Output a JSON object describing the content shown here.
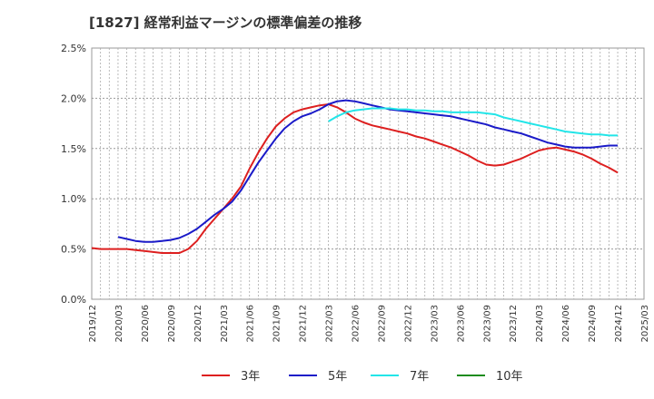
{
  "chart_data": {
    "type": "line",
    "title": "[1827]  経常利益マージンの標準偏差の推移",
    "xlabel": "",
    "ylabel": "",
    "x_ticks": [
      "2019/12",
      "2020/03",
      "2020/06",
      "2020/09",
      "2020/12",
      "2021/03",
      "2021/06",
      "2021/09",
      "2021/12",
      "2022/03",
      "2022/06",
      "2022/09",
      "2022/12",
      "2023/03",
      "2023/06",
      "2023/09",
      "2023/12",
      "2024/03",
      "2024/06",
      "2024/09",
      "2024/12",
      "2025/03"
    ],
    "y_ticks": [
      "0.0%",
      "0.5%",
      "1.0%",
      "1.5%",
      "2.0%",
      "2.5%"
    ],
    "ylim": [
      0,
      2.5
    ],
    "grid": true,
    "legend_position": "bottom",
    "series": [
      {
        "name": "3年",
        "color": "#dd1f1f",
        "points": [
          [
            "2019/12",
            0.51
          ],
          [
            "2020/01",
            0.5
          ],
          [
            "2020/02",
            0.5
          ],
          [
            "2020/03",
            0.5
          ],
          [
            "2020/04",
            0.5
          ],
          [
            "2020/05",
            0.49
          ],
          [
            "2020/06",
            0.48
          ],
          [
            "2020/07",
            0.47
          ],
          [
            "2020/08",
            0.46
          ],
          [
            "2020/09",
            0.46
          ],
          [
            "2020/10",
            0.46
          ],
          [
            "2020/11",
            0.5
          ],
          [
            "2020/12",
            0.58
          ],
          [
            "2021/01",
            0.7
          ],
          [
            "2021/02",
            0.8
          ],
          [
            "2021/03",
            0.9
          ],
          [
            "2021/04",
            1.0
          ],
          [
            "2021/05",
            1.12
          ],
          [
            "2021/06",
            1.3
          ],
          [
            "2021/07",
            1.46
          ],
          [
            "2021/08",
            1.6
          ],
          [
            "2021/09",
            1.72
          ],
          [
            "2021/10",
            1.8
          ],
          [
            "2021/11",
            1.86
          ],
          [
            "2021/12",
            1.89
          ],
          [
            "2022/01",
            1.91
          ],
          [
            "2022/02",
            1.93
          ],
          [
            "2022/03",
            1.94
          ],
          [
            "2022/04",
            1.91
          ],
          [
            "2022/05",
            1.86
          ],
          [
            "2022/06",
            1.8
          ],
          [
            "2022/07",
            1.76
          ],
          [
            "2022/08",
            1.73
          ],
          [
            "2022/09",
            1.71
          ],
          [
            "2022/10",
            1.69
          ],
          [
            "2022/11",
            1.67
          ],
          [
            "2022/12",
            1.65
          ],
          [
            "2023/01",
            1.62
          ],
          [
            "2023/02",
            1.6
          ],
          [
            "2023/03",
            1.57
          ],
          [
            "2023/04",
            1.54
          ],
          [
            "2023/05",
            1.51
          ],
          [
            "2023/06",
            1.47
          ],
          [
            "2023/07",
            1.43
          ],
          [
            "2023/08",
            1.38
          ],
          [
            "2023/09",
            1.34
          ],
          [
            "2023/10",
            1.33
          ],
          [
            "2023/11",
            1.34
          ],
          [
            "2023/12",
            1.37
          ],
          [
            "2024/01",
            1.4
          ],
          [
            "2024/02",
            1.44
          ],
          [
            "2024/03",
            1.48
          ],
          [
            "2024/04",
            1.5
          ],
          [
            "2024/05",
            1.51
          ],
          [
            "2024/06",
            1.49
          ],
          [
            "2024/07",
            1.47
          ],
          [
            "2024/08",
            1.44
          ],
          [
            "2024/09",
            1.4
          ],
          [
            "2024/10",
            1.35
          ],
          [
            "2024/11",
            1.31
          ],
          [
            "2024/12",
            1.26
          ]
        ]
      },
      {
        "name": "5年",
        "color": "#1a1ac8",
        "points": [
          [
            "2020/03",
            0.62
          ],
          [
            "2020/04",
            0.6
          ],
          [
            "2020/05",
            0.58
          ],
          [
            "2020/06",
            0.57
          ],
          [
            "2020/07",
            0.57
          ],
          [
            "2020/08",
            0.58
          ],
          [
            "2020/09",
            0.59
          ],
          [
            "2020/10",
            0.61
          ],
          [
            "2020/11",
            0.65
          ],
          [
            "2020/12",
            0.7
          ],
          [
            "2021/01",
            0.77
          ],
          [
            "2021/02",
            0.84
          ],
          [
            "2021/03",
            0.9
          ],
          [
            "2021/04",
            0.97
          ],
          [
            "2021/05",
            1.08
          ],
          [
            "2021/06",
            1.22
          ],
          [
            "2021/07",
            1.36
          ],
          [
            "2021/08",
            1.48
          ],
          [
            "2021/09",
            1.6
          ],
          [
            "2021/10",
            1.7
          ],
          [
            "2021/11",
            1.77
          ],
          [
            "2021/12",
            1.82
          ],
          [
            "2022/01",
            1.85
          ],
          [
            "2022/02",
            1.89
          ],
          [
            "2022/03",
            1.94
          ],
          [
            "2022/04",
            1.97
          ],
          [
            "2022/05",
            1.98
          ],
          [
            "2022/06",
            1.97
          ],
          [
            "2022/07",
            1.95
          ],
          [
            "2022/08",
            1.93
          ],
          [
            "2022/09",
            1.91
          ],
          [
            "2022/10",
            1.89
          ],
          [
            "2022/11",
            1.88
          ],
          [
            "2022/12",
            1.87
          ],
          [
            "2023/01",
            1.86
          ],
          [
            "2023/02",
            1.85
          ],
          [
            "2023/03",
            1.84
          ],
          [
            "2023/04",
            1.83
          ],
          [
            "2023/05",
            1.82
          ],
          [
            "2023/06",
            1.8
          ],
          [
            "2023/07",
            1.78
          ],
          [
            "2023/08",
            1.76
          ],
          [
            "2023/09",
            1.74
          ],
          [
            "2023/10",
            1.71
          ],
          [
            "2023/11",
            1.69
          ],
          [
            "2023/12",
            1.67
          ],
          [
            "2024/01",
            1.65
          ],
          [
            "2024/02",
            1.62
          ],
          [
            "2024/03",
            1.59
          ],
          [
            "2024/04",
            1.56
          ],
          [
            "2024/05",
            1.54
          ],
          [
            "2024/06",
            1.52
          ],
          [
            "2024/07",
            1.51
          ],
          [
            "2024/08",
            1.51
          ],
          [
            "2024/09",
            1.51
          ],
          [
            "2024/10",
            1.52
          ],
          [
            "2024/11",
            1.53
          ],
          [
            "2024/12",
            1.53
          ]
        ]
      },
      {
        "name": "7年",
        "color": "#22e5e8",
        "points": [
          [
            "2022/03",
            1.77
          ],
          [
            "2022/04",
            1.82
          ],
          [
            "2022/05",
            1.86
          ],
          [
            "2022/06",
            1.88
          ],
          [
            "2022/07",
            1.89
          ],
          [
            "2022/08",
            1.9
          ],
          [
            "2022/09",
            1.9
          ],
          [
            "2022/10",
            1.9
          ],
          [
            "2022/11",
            1.89
          ],
          [
            "2022/12",
            1.89
          ],
          [
            "2023/01",
            1.88
          ],
          [
            "2023/02",
            1.88
          ],
          [
            "2023/03",
            1.87
          ],
          [
            "2023/04",
            1.87
          ],
          [
            "2023/05",
            1.86
          ],
          [
            "2023/06",
            1.86
          ],
          [
            "2023/07",
            1.86
          ],
          [
            "2023/08",
            1.86
          ],
          [
            "2023/09",
            1.85
          ],
          [
            "2023/10",
            1.84
          ],
          [
            "2023/11",
            1.81
          ],
          [
            "2023/12",
            1.79
          ],
          [
            "2024/01",
            1.77
          ],
          [
            "2024/02",
            1.75
          ],
          [
            "2024/03",
            1.73
          ],
          [
            "2024/04",
            1.71
          ],
          [
            "2024/05",
            1.69
          ],
          [
            "2024/06",
            1.67
          ],
          [
            "2024/07",
            1.66
          ],
          [
            "2024/08",
            1.65
          ],
          [
            "2024/09",
            1.64
          ],
          [
            "2024/10",
            1.64
          ],
          [
            "2024/11",
            1.63
          ],
          [
            "2024/12",
            1.63
          ]
        ]
      },
      {
        "name": "10年",
        "color": "#1e8c1e",
        "points": []
      }
    ]
  }
}
